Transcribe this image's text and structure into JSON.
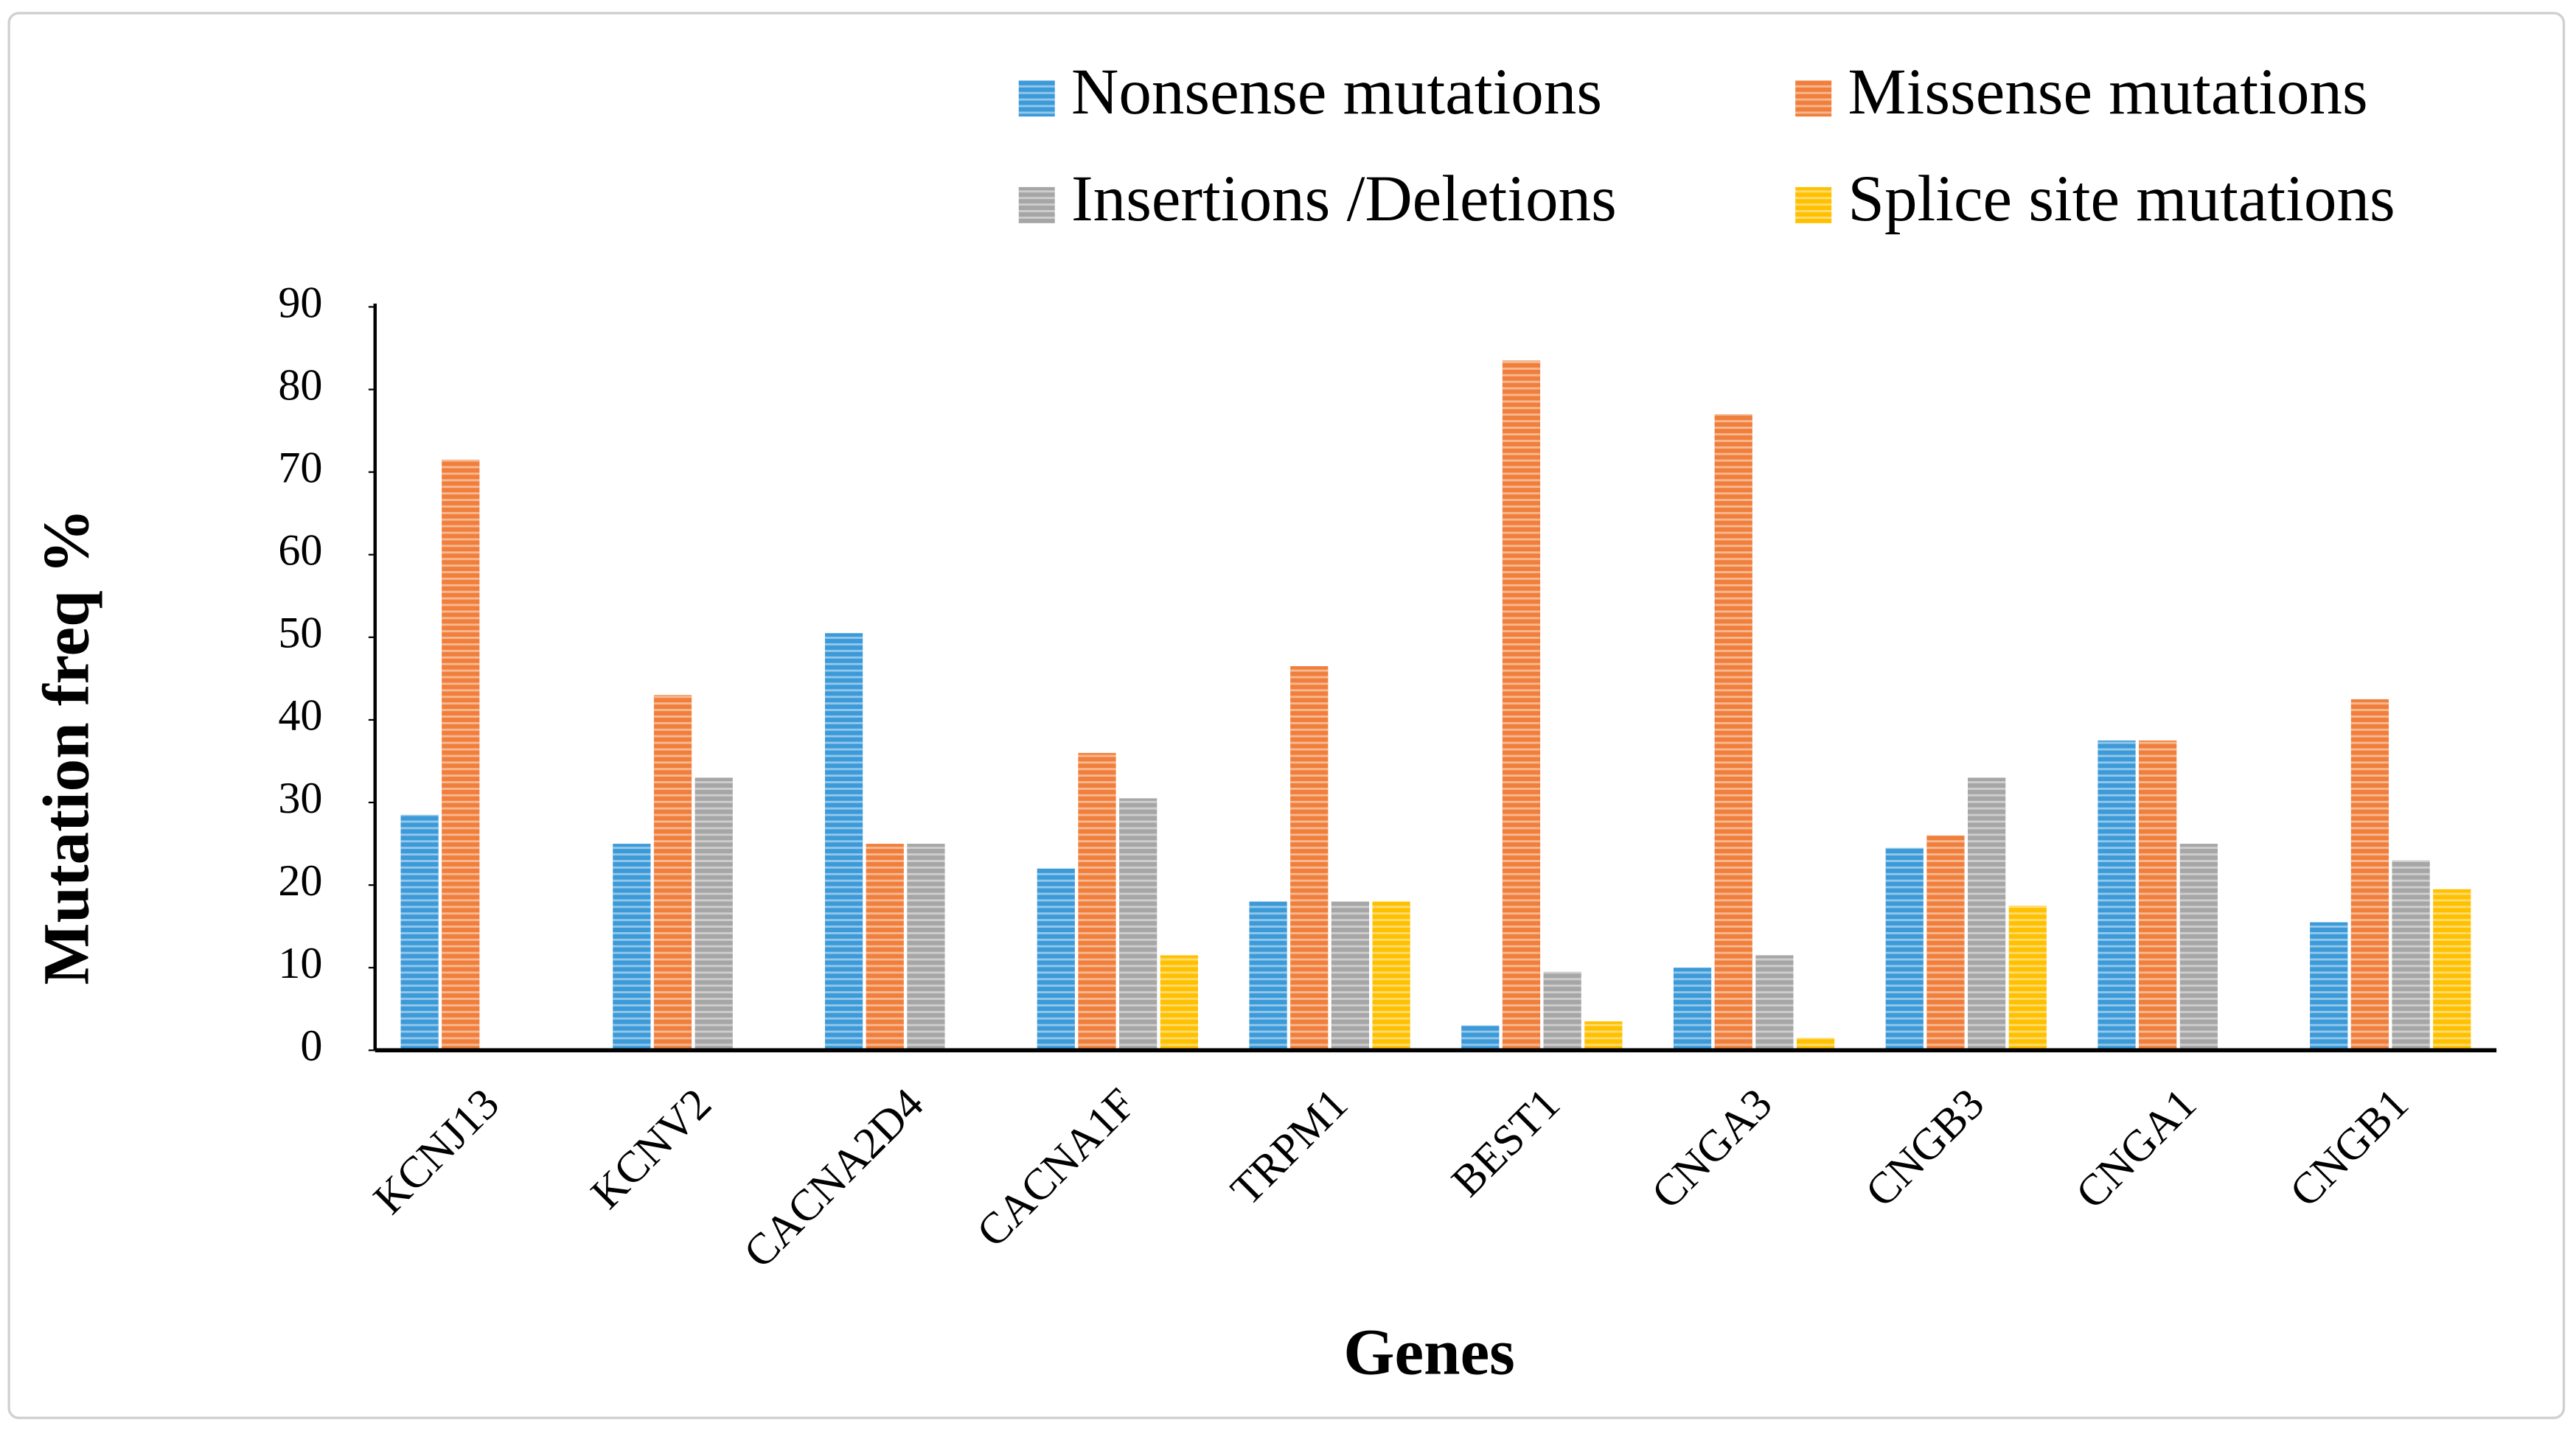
{
  "chart_data": {
    "type": "bar",
    "x_label": "Genes",
    "y_label": "Mutation freq %",
    "categories": [
      "KCNJ13",
      "KCNV2",
      "CACNA2D4",
      "CACNA1F",
      "TRPM1",
      "BEST1",
      "CNGA3",
      "CNGB3",
      "CNGA1",
      "CNGB1"
    ],
    "series": [
      {
        "name": "Nonsense mutations",
        "color": "#3c9ad8",
        "values": [
          28.5,
          25,
          50.5,
          22,
          18,
          3,
          10,
          24.5,
          37.5,
          15.5
        ]
      },
      {
        "name": "Missense mutations",
        "color": "#f07f3c",
        "values": [
          71.5,
          43,
          25,
          36,
          46.5,
          83.5,
          77,
          26,
          37.5,
          42.5
        ]
      },
      {
        "name": "Insertions /Deletions",
        "color": "#a6a6a6",
        "values": [
          0,
          33,
          25,
          30.5,
          18,
          9.5,
          11.5,
          33,
          25,
          23
        ]
      },
      {
        "name": "Splice site mutations",
        "color": "#ffc000",
        "values": [
          0,
          0,
          0,
          11.5,
          18,
          3.5,
          1.5,
          17.5,
          0,
          19.5
        ]
      }
    ],
    "ylim": [
      0,
      90
    ],
    "yticks": [
      0,
      10,
      20,
      30,
      40,
      50,
      60,
      70,
      80,
      90
    ],
    "legend": "top"
  }
}
